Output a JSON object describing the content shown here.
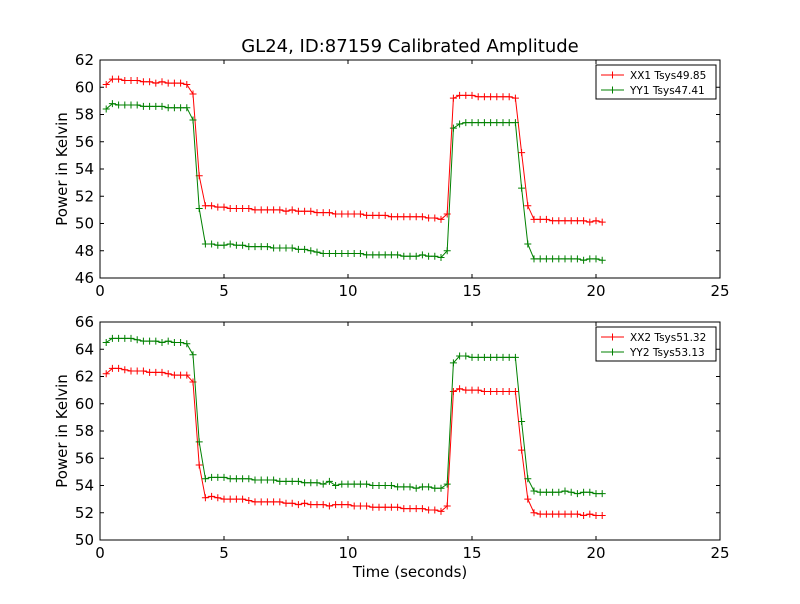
{
  "figure": {
    "title": "GL24, ID:87159 Calibrated Amplitude"
  },
  "colors": {
    "xx": "#ff0000",
    "yy": "#008000"
  },
  "chart_data": [
    {
      "type": "line",
      "ylabel": "Power in Kelvin",
      "xlabel": "",
      "xlim": [
        0,
        25
      ],
      "ylim": [
        46,
        62
      ],
      "xticks": [
        "0",
        "5",
        "10",
        "15",
        "20",
        "25"
      ],
      "yticks": [
        "46",
        "48",
        "50",
        "52",
        "54",
        "56",
        "58",
        "60",
        "62"
      ],
      "legend": "top-right",
      "grid": false,
      "series": [
        {
          "name": "XX1 Tsys49.85",
          "color": "#ff0000",
          "x": [
            0.25,
            0.5,
            0.75,
            1.0,
            1.25,
            1.5,
            1.75,
            2.0,
            2.25,
            2.5,
            2.75,
            3.0,
            3.25,
            3.5,
            3.75,
            4.0,
            4.25,
            4.5,
            4.75,
            5.0,
            5.25,
            5.5,
            5.75,
            6.0,
            6.25,
            6.5,
            6.75,
            7.0,
            7.25,
            7.5,
            7.75,
            8.0,
            8.25,
            8.5,
            8.75,
            9.0,
            9.25,
            9.5,
            9.75,
            10.0,
            10.25,
            10.5,
            10.75,
            11.0,
            11.25,
            11.5,
            11.75,
            12.0,
            12.25,
            12.5,
            12.75,
            13.0,
            13.25,
            13.5,
            13.75,
            14.0,
            14.25,
            14.5,
            14.75,
            15.0,
            15.25,
            15.5,
            15.75,
            16.0,
            16.25,
            16.5,
            16.75,
            17.0,
            17.25,
            17.5,
            17.75,
            18.0,
            18.25,
            18.5,
            18.75,
            19.0,
            19.25,
            19.5,
            19.75,
            20.0,
            20.25
          ],
          "y": [
            60.2,
            60.6,
            60.6,
            60.5,
            60.5,
            60.5,
            60.4,
            60.4,
            60.3,
            60.4,
            60.3,
            60.3,
            60.3,
            60.2,
            59.5,
            53.5,
            51.3,
            51.3,
            51.2,
            51.2,
            51.1,
            51.1,
            51.1,
            51.1,
            51.0,
            51.0,
            51.0,
            51.0,
            51.0,
            50.9,
            51.0,
            50.9,
            50.9,
            50.9,
            50.8,
            50.8,
            50.8,
            50.7,
            50.7,
            50.7,
            50.7,
            50.7,
            50.6,
            50.6,
            50.6,
            50.6,
            50.5,
            50.5,
            50.5,
            50.5,
            50.5,
            50.5,
            50.4,
            50.4,
            50.3,
            50.7,
            59.2,
            59.4,
            59.4,
            59.4,
            59.3,
            59.3,
            59.3,
            59.3,
            59.3,
            59.3,
            59.2,
            55.2,
            51.3,
            50.3,
            50.3,
            50.3,
            50.2,
            50.2,
            50.2,
            50.2,
            50.2,
            50.2,
            50.1,
            50.2,
            50.1
          ]
        },
        {
          "name": "YY1 Tsys47.41",
          "color": "#008000",
          "x": [
            0.25,
            0.5,
            0.75,
            1.0,
            1.25,
            1.5,
            1.75,
            2.0,
            2.25,
            2.5,
            2.75,
            3.0,
            3.25,
            3.5,
            3.75,
            4.0,
            4.25,
            4.5,
            4.75,
            5.0,
            5.25,
            5.5,
            5.75,
            6.0,
            6.25,
            6.5,
            6.75,
            7.0,
            7.25,
            7.5,
            7.75,
            8.0,
            8.25,
            8.5,
            8.75,
            9.0,
            9.25,
            9.5,
            9.75,
            10.0,
            10.25,
            10.5,
            10.75,
            11.0,
            11.25,
            11.5,
            11.75,
            12.0,
            12.25,
            12.5,
            12.75,
            13.0,
            13.25,
            13.5,
            13.75,
            14.0,
            14.25,
            14.5,
            14.75,
            15.0,
            15.25,
            15.5,
            15.75,
            16.0,
            16.25,
            16.5,
            16.75,
            17.0,
            17.25,
            17.5,
            17.75,
            18.0,
            18.25,
            18.5,
            18.75,
            19.0,
            19.25,
            19.5,
            19.75,
            20.0,
            20.25
          ],
          "y": [
            58.4,
            58.8,
            58.7,
            58.7,
            58.7,
            58.7,
            58.6,
            58.6,
            58.6,
            58.6,
            58.5,
            58.5,
            58.5,
            58.5,
            57.6,
            51.1,
            48.5,
            48.5,
            48.4,
            48.4,
            48.5,
            48.4,
            48.4,
            48.3,
            48.3,
            48.3,
            48.3,
            48.2,
            48.2,
            48.2,
            48.2,
            48.1,
            48.1,
            48.0,
            47.9,
            47.8,
            47.8,
            47.8,
            47.8,
            47.8,
            47.8,
            47.8,
            47.7,
            47.7,
            47.7,
            47.7,
            47.7,
            47.7,
            47.6,
            47.6,
            47.6,
            47.7,
            47.6,
            47.6,
            47.5,
            48.0,
            57.0,
            57.3,
            57.4,
            57.4,
            57.4,
            57.4,
            57.4,
            57.4,
            57.4,
            57.4,
            57.4,
            52.6,
            48.5,
            47.4,
            47.4,
            47.4,
            47.4,
            47.4,
            47.4,
            47.4,
            47.4,
            47.3,
            47.4,
            47.4,
            47.3
          ]
        }
      ]
    },
    {
      "type": "line",
      "ylabel": "Power in Kelvin",
      "xlabel": "Time (seconds)",
      "xlim": [
        0,
        25
      ],
      "ylim": [
        50,
        66
      ],
      "xticks": [
        "0",
        "5",
        "10",
        "15",
        "20",
        "25"
      ],
      "yticks": [
        "50",
        "52",
        "54",
        "56",
        "58",
        "60",
        "62",
        "64",
        "66"
      ],
      "legend": "top-right",
      "grid": false,
      "series": [
        {
          "name": "XX2 Tsys51.32",
          "color": "#ff0000",
          "x": [
            0.25,
            0.5,
            0.75,
            1.0,
            1.25,
            1.5,
            1.75,
            2.0,
            2.25,
            2.5,
            2.75,
            3.0,
            3.25,
            3.5,
            3.75,
            4.0,
            4.25,
            4.5,
            4.75,
            5.0,
            5.25,
            5.5,
            5.75,
            6.0,
            6.25,
            6.5,
            6.75,
            7.0,
            7.25,
            7.5,
            7.75,
            8.0,
            8.25,
            8.5,
            8.75,
            9.0,
            9.25,
            9.5,
            9.75,
            10.0,
            10.25,
            10.5,
            10.75,
            11.0,
            11.25,
            11.5,
            11.75,
            12.0,
            12.25,
            12.5,
            12.75,
            13.0,
            13.25,
            13.5,
            13.75,
            14.0,
            14.25,
            14.5,
            14.75,
            15.0,
            15.25,
            15.5,
            15.75,
            16.0,
            16.25,
            16.5,
            16.75,
            17.0,
            17.25,
            17.5,
            17.75,
            18.0,
            18.25,
            18.5,
            18.75,
            19.0,
            19.25,
            19.5,
            19.75,
            20.0,
            20.25
          ],
          "y": [
            62.2,
            62.6,
            62.6,
            62.5,
            62.4,
            62.4,
            62.4,
            62.3,
            62.3,
            62.3,
            62.2,
            62.1,
            62.1,
            62.1,
            61.6,
            55.5,
            53.1,
            53.2,
            53.1,
            53.0,
            53.0,
            53.0,
            53.0,
            52.9,
            52.8,
            52.8,
            52.8,
            52.8,
            52.8,
            52.7,
            52.7,
            52.6,
            52.7,
            52.6,
            52.6,
            52.6,
            52.5,
            52.6,
            52.6,
            52.6,
            52.5,
            52.5,
            52.5,
            52.4,
            52.4,
            52.4,
            52.4,
            52.4,
            52.3,
            52.3,
            52.3,
            52.3,
            52.2,
            52.2,
            52.1,
            52.5,
            60.9,
            61.1,
            61.0,
            61.0,
            61.0,
            60.9,
            60.9,
            60.9,
            60.9,
            60.9,
            60.9,
            56.6,
            53.0,
            52.0,
            51.9,
            51.9,
            51.9,
            51.9,
            51.9,
            51.9,
            51.9,
            51.8,
            51.9,
            51.8,
            51.8
          ]
        },
        {
          "name": "YY2 Tsys53.13",
          "color": "#008000",
          "x": [
            0.25,
            0.5,
            0.75,
            1.0,
            1.25,
            1.5,
            1.75,
            2.0,
            2.25,
            2.5,
            2.75,
            3.0,
            3.25,
            3.5,
            3.75,
            4.0,
            4.25,
            4.5,
            4.75,
            5.0,
            5.25,
            5.5,
            5.75,
            6.0,
            6.25,
            6.5,
            6.75,
            7.0,
            7.25,
            7.5,
            7.75,
            8.0,
            8.25,
            8.5,
            8.75,
            9.0,
            9.25,
            9.5,
            9.75,
            10.0,
            10.25,
            10.5,
            10.75,
            11.0,
            11.25,
            11.5,
            11.75,
            12.0,
            12.25,
            12.5,
            12.75,
            13.0,
            13.25,
            13.5,
            13.75,
            14.0,
            14.25,
            14.5,
            14.75,
            15.0,
            15.25,
            15.5,
            15.75,
            16.0,
            16.25,
            16.5,
            16.75,
            17.0,
            17.25,
            17.5,
            17.75,
            18.0,
            18.25,
            18.5,
            18.75,
            19.0,
            19.25,
            19.5,
            19.75,
            20.0,
            20.25
          ],
          "y": [
            64.5,
            64.8,
            64.8,
            64.8,
            64.8,
            64.7,
            64.6,
            64.6,
            64.6,
            64.5,
            64.6,
            64.5,
            64.5,
            64.4,
            63.6,
            57.2,
            54.5,
            54.6,
            54.6,
            54.6,
            54.5,
            54.5,
            54.5,
            54.5,
            54.4,
            54.4,
            54.4,
            54.4,
            54.3,
            54.3,
            54.3,
            54.3,
            54.2,
            54.2,
            54.2,
            54.1,
            54.3,
            54.0,
            54.1,
            54.1,
            54.1,
            54.1,
            54.1,
            54.0,
            54.0,
            54.0,
            54.0,
            53.9,
            53.9,
            53.9,
            53.8,
            53.9,
            53.9,
            53.8,
            53.8,
            54.1,
            63.0,
            63.5,
            63.5,
            63.4,
            63.4,
            63.4,
            63.4,
            63.4,
            63.4,
            63.4,
            63.4,
            58.7,
            54.5,
            53.6,
            53.5,
            53.5,
            53.5,
            53.5,
            53.6,
            53.5,
            53.4,
            53.5,
            53.5,
            53.4,
            53.4
          ]
        }
      ]
    }
  ]
}
